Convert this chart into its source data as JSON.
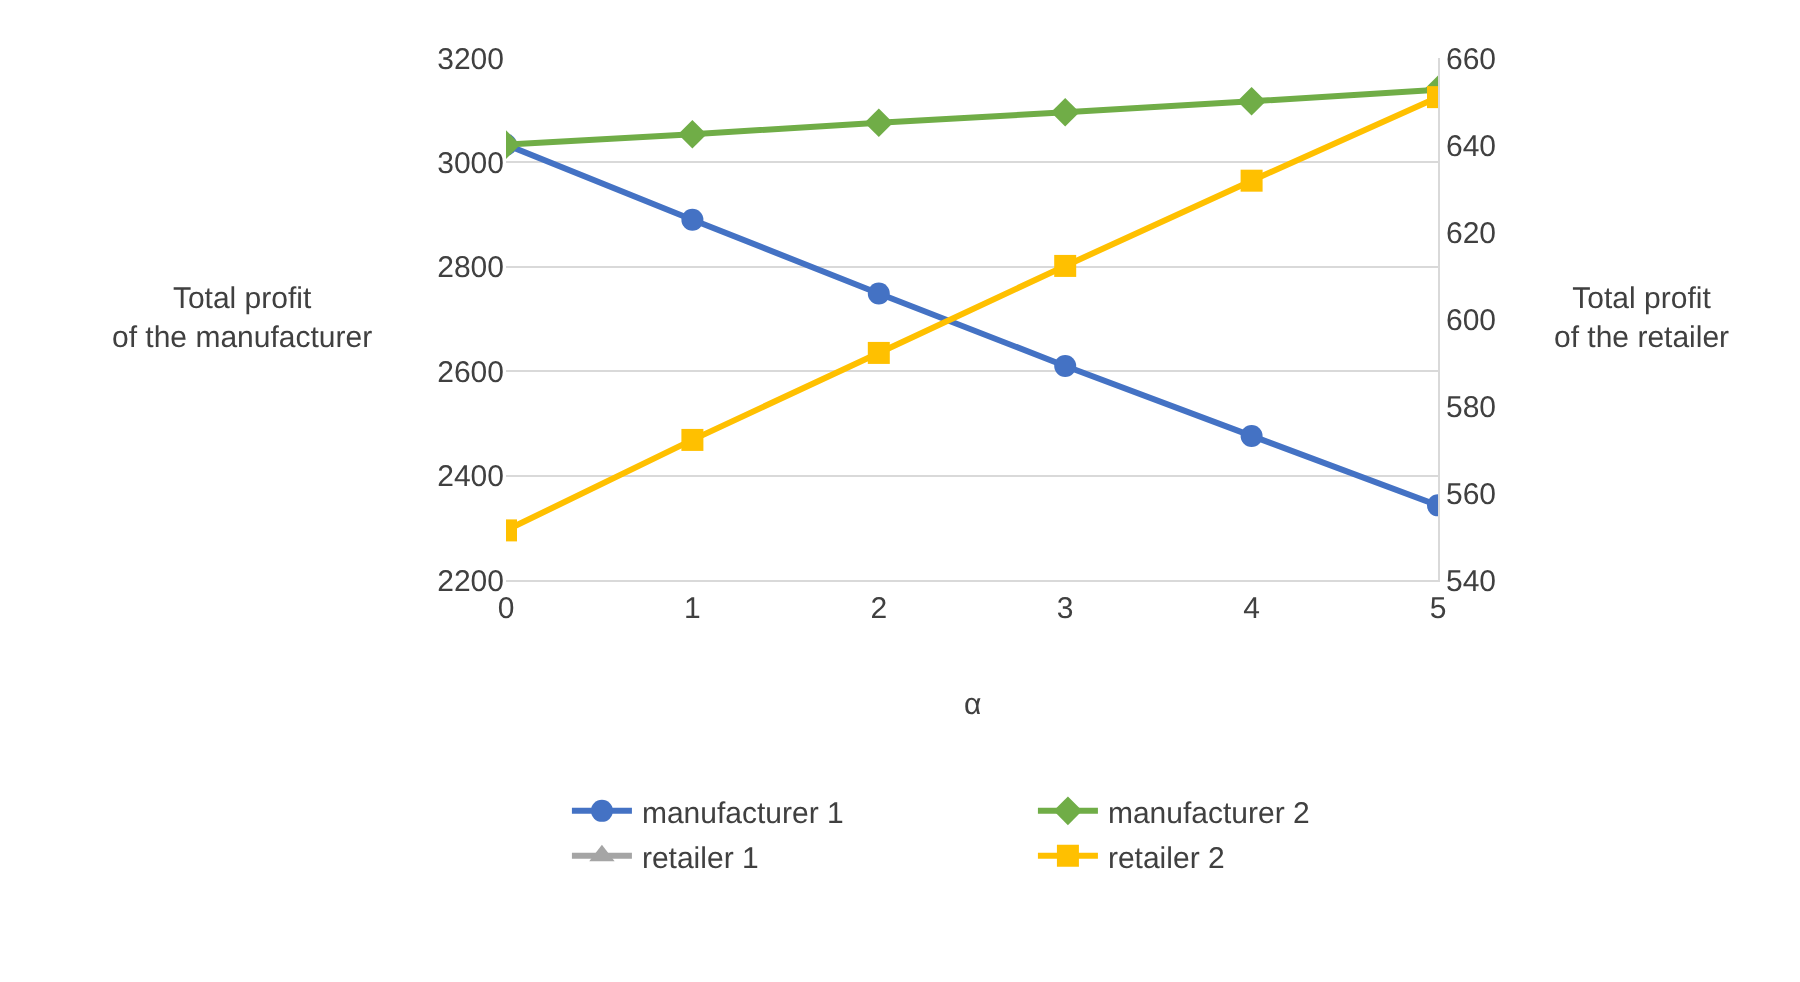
{
  "chart_data": {
    "type": "line",
    "xlabel": "α",
    "ylabel": "Total profit\nof the manufacturer",
    "y2label": "Total profit\nof the retailer",
    "categories": [
      "0",
      "1",
      "2",
      "3",
      "4",
      "5"
    ],
    "series": [
      {
        "name": "manufacturer 1",
        "color": "#4472c4",
        "marker": "circle",
        "values": [
          3034,
          2890,
          2749,
          2610,
          2476,
          2343
        ]
      },
      {
        "name": "manufacturer 2",
        "color": "#70ad47",
        "marker": "diamond",
        "values": [
          3034,
          3054,
          3076,
          3096,
          3117,
          3139
        ]
      },
      {
        "name": "retailer 1",
        "color": "#a5a5a5",
        "marker": "triangle",
        "axis": "y2",
        "values": [
          null,
          null,
          null,
          null,
          null,
          null
        ]
      },
      {
        "name": "retailer 2",
        "color": "#ffc000",
        "marker": "square",
        "axis": "y2",
        "values": [
          551.4,
          572.2,
          592.2,
          612.2,
          631.8,
          651
        ]
      }
    ],
    "ylim": [
      2200,
      3200
    ],
    "yticks": [
      2200,
      2400,
      2600,
      2800,
      3000,
      3200
    ],
    "y2lim": [
      540,
      660
    ],
    "y2ticks": [
      540,
      560,
      580,
      600,
      620,
      640,
      660
    ],
    "grid": "y",
    "legend": "bottom",
    "line_style": "solid"
  }
}
